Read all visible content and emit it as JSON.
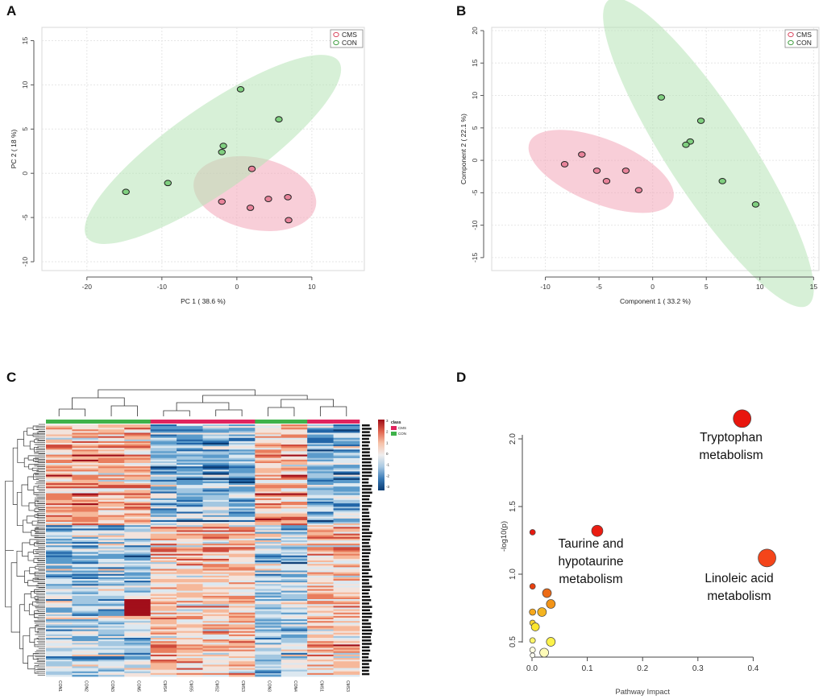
{
  "panels": {
    "A": "A",
    "B": "B",
    "C": "C",
    "D": "D"
  },
  "chart_data": [
    {
      "id": "A",
      "type": "scatter",
      "xlabel": "PC 1 ( 38.6 %)",
      "ylabel": "PC 2 ( 18 %)",
      "xlim": [
        -26,
        17
      ],
      "ylim": [
        -11,
        16.5
      ],
      "xticks": [
        -20,
        -10,
        0,
        10
      ],
      "yticks": [
        -10,
        -5,
        0,
        5,
        10,
        15
      ],
      "legend": [
        {
          "name": "CMS",
          "color": "#d9465f"
        },
        {
          "name": "CON",
          "color": "#3c9c3c"
        }
      ],
      "series": [
        {
          "name": "CMS",
          "color": "#e8839a",
          "points": [
            [
              2,
              0.5
            ],
            [
              -2,
              -3.2
            ],
            [
              1.8,
              -3.9
            ],
            [
              4.2,
              -2.9
            ],
            [
              6.8,
              -2.7
            ],
            [
              6.9,
              -5.3
            ]
          ]
        },
        {
          "name": "CON",
          "color": "#7fcf7f",
          "points": [
            [
              0.5,
              9.5
            ],
            [
              5.6,
              6.1
            ],
            [
              -1.8,
              3.1
            ],
            [
              -2,
              2.4
            ],
            [
              -9.2,
              -1.1
            ],
            [
              -14.8,
              -2.1
            ]
          ]
        }
      ],
      "ellipses": [
        {
          "name": "CMS",
          "cx": 2.4,
          "cy": -2.3,
          "rx": 8.3,
          "ry": 4.8,
          "angle": -12,
          "color": "#f2a6b8"
        },
        {
          "name": "CON",
          "cx": -3.2,
          "cy": 2.7,
          "rx": 20.5,
          "ry": 5.6,
          "angle": 35,
          "color": "#b6e3b6"
        }
      ]
    },
    {
      "id": "B",
      "type": "scatter",
      "xlabel": "Component 1 ( 33.2 %)",
      "ylabel": "Component 2 ( 22.1 %)",
      "xlim": [
        -15,
        15.5
      ],
      "ylim": [
        -17,
        20.5
      ],
      "xticks": [
        -10,
        -5,
        0,
        5,
        10,
        15
      ],
      "yticks": [
        -15,
        -10,
        -5,
        0,
        5,
        10,
        15,
        20
      ],
      "legend": [
        {
          "name": "CMS",
          "color": "#d9465f"
        },
        {
          "name": "CON",
          "color": "#3c9c3c"
        }
      ],
      "series": [
        {
          "name": "CMS",
          "color": "#e8839a",
          "points": [
            [
              -8.2,
              -0.6
            ],
            [
              -6.6,
              0.9
            ],
            [
              -5.2,
              -1.6
            ],
            [
              -4.3,
              -3.2
            ],
            [
              -2.5,
              -1.6
            ],
            [
              -1.3,
              -4.6
            ]
          ]
        },
        {
          "name": "CON",
          "color": "#7fcf7f",
          "points": [
            [
              0.8,
              9.7
            ],
            [
              4.5,
              6.1
            ],
            [
              3.5,
              2.9
            ],
            [
              3.1,
              2.4
            ],
            [
              6.5,
              -3.2
            ],
            [
              9.6,
              -6.8
            ]
          ]
        }
      ],
      "ellipses": [
        {
          "name": "CMS",
          "cx": -4.8,
          "cy": -1.7,
          "rx": 7.2,
          "ry": 3,
          "angle": -22,
          "color": "#f2a6b8"
        },
        {
          "name": "CON",
          "cx": 5.2,
          "cy": 1.2,
          "rx": 17,
          "ry": 3.9,
          "angle": -57,
          "color": "#b6e3b6"
        }
      ]
    },
    {
      "id": "C",
      "type": "heatmap",
      "columns": [
        "CON1",
        "CON2",
        "CON3",
        "CON5",
        "CMS4",
        "CMS5",
        "CMS2",
        "CMS3",
        "CON3",
        "CON4",
        "CMS1",
        "CMS3"
      ],
      "column_class": [
        "CON",
        "CON",
        "CON",
        "CON",
        "CMS",
        "CMS",
        "CMS",
        "CMS",
        "CON",
        "CON",
        "CMS",
        "CMS"
      ],
      "class_colors": {
        "CMS": "#e0245e",
        "CON": "#3fb24a"
      },
      "legend_title": "class",
      "legend_items": [
        "CMS",
        "CON"
      ],
      "scale_ticks": [
        3,
        2,
        1,
        0,
        -1,
        -2,
        -3
      ],
      "scale_colors": [
        "#9e0c17",
        "#e0634e",
        "#f6c2a8",
        "#f0eeee",
        "#a9c9e2",
        "#3a7bb6",
        "#0a3b73"
      ]
    },
    {
      "id": "D",
      "type": "scatter",
      "title": "",
      "xlabel": "Pathway Impact",
      "ylabel": "-log10(p)",
      "xlim": [
        -0.01,
        0.46
      ],
      "ylim": [
        0.34,
        2.27
      ],
      "xticks": [
        0.0,
        0.1,
        0.2,
        0.3,
        0.4
      ],
      "ytick_labels": [
        "0.5",
        "1.0",
        "1.5",
        "2.0"
      ],
      "points": [
        {
          "x": 0.38,
          "y": 2.15,
          "size": 11,
          "color": "#e8160e"
        },
        {
          "x": 0.425,
          "y": 1.12,
          "size": 11,
          "color": "#f4451a"
        },
        {
          "x": 0.118,
          "y": 1.32,
          "size": 7,
          "color": "#ea1d12"
        },
        {
          "x": 0.001,
          "y": 1.31,
          "size": 3.5,
          "color": "#e51a10"
        },
        {
          "x": 0.001,
          "y": 0.91,
          "size": 3.5,
          "color": "#e8400f"
        },
        {
          "x": 0.027,
          "y": 0.86,
          "size": 5.5,
          "color": "#ec6b16"
        },
        {
          "x": 0.034,
          "y": 0.78,
          "size": 5.5,
          "color": "#f29418"
        },
        {
          "x": 0.018,
          "y": 0.72,
          "size": 5.5,
          "color": "#f4b420"
        },
        {
          "x": 0.001,
          "y": 0.72,
          "size": 4,
          "color": "#f6a81c"
        },
        {
          "x": 0.001,
          "y": 0.64,
          "size": 3.5,
          "color": "#f8d42c"
        },
        {
          "x": 0.006,
          "y": 0.61,
          "size": 5,
          "color": "#fbe62e"
        },
        {
          "x": 0.034,
          "y": 0.5,
          "size": 5.5,
          "color": "#fcf24a"
        },
        {
          "x": 0.001,
          "y": 0.51,
          "size": 3.5,
          "color": "#fdf56a"
        },
        {
          "x": 0.022,
          "y": 0.42,
          "size": 5.5,
          "color": "#fefbb8"
        },
        {
          "x": 0.001,
          "y": 0.44,
          "size": 3.5,
          "color": "#fffde0"
        },
        {
          "x": 0.001,
          "y": 0.4,
          "size": 3,
          "color": "#fffef2"
        }
      ],
      "annotations": [
        {
          "lines": [
            "Tryptophan",
            "metabolism"
          ]
        },
        {
          "lines": [
            "Taurine and",
            "hypotaurine",
            "metabolism"
          ]
        },
        {
          "lines": [
            "Linoleic acid",
            "metabolism"
          ]
        }
      ]
    }
  ]
}
